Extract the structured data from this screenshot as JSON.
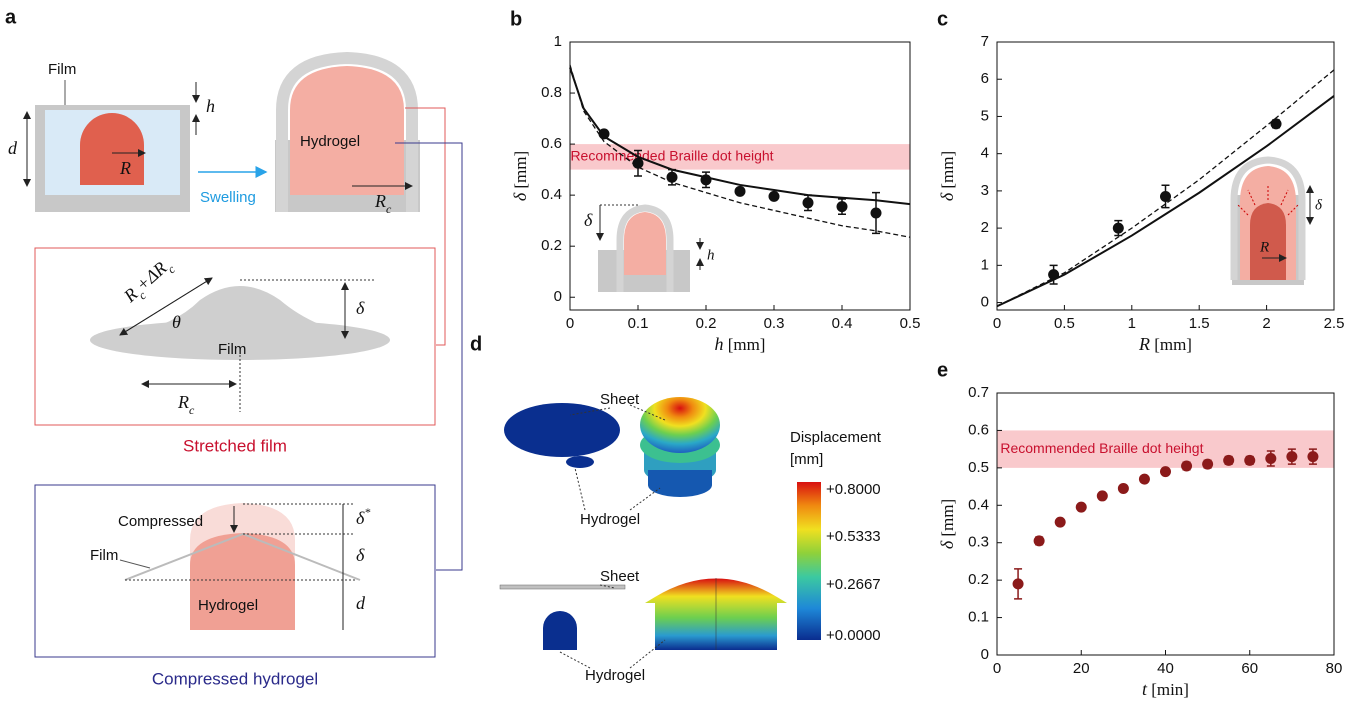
{
  "panel_a": {
    "label": "a",
    "film": "Film",
    "h": "h",
    "d": "d",
    "R": "R",
    "swelling": "Swelling",
    "hydrogel": "Hydrogel",
    "Rc": [
      "R",
      "c"
    ],
    "stretched": {
      "arc": [
        "R",
        "c",
        "+ΔR",
        "c"
      ],
      "theta": "θ",
      "delta": "δ",
      "film": "Film",
      "Rc": [
        "R",
        "c"
      ],
      "caption": "Stretched film"
    },
    "compressed": {
      "compressed": "Compressed",
      "delta_star": [
        "δ",
        "*"
      ],
      "delta": "δ",
      "film": "Film",
      "hydrogel": "Hydrogel",
      "d": "d",
      "caption": "Compressed hydrogel"
    }
  },
  "panel_d": {
    "label": "d",
    "sheet_top": "Sheet",
    "hydrogel_top": "Hydrogel",
    "colorbar_title": [
      "Displacement",
      "[mm]"
    ],
    "colorbar_ticks": [
      "+0.8000",
      "+0.5333",
      "+0.2667",
      "+0.0000"
    ],
    "sheet_bottom": "Sheet",
    "hydrogel_bottom": "Hydrogel"
  },
  "chart_data": [
    {
      "type": "scatter",
      "panel": "b",
      "xlabel": {
        "symbol": "h",
        "unit": "[mm]"
      },
      "ylabel": {
        "symbol": "δ",
        "unit": "[mm]"
      },
      "xlim": [
        0,
        0.5
      ],
      "ylim": [
        -0.05,
        1
      ],
      "xticks": [
        0,
        0.1,
        0.2,
        0.3,
        0.4,
        0.5
      ],
      "yticks": [
        0,
        0.2,
        0.4,
        0.6,
        0.8,
        1
      ],
      "band": {
        "range": [
          0.5,
          0.6
        ],
        "color": "#f9c9cc",
        "label": "Recommended Braille dot height",
        "label_color": "#c8102e"
      },
      "inset_labels": [
        "δ",
        "h"
      ],
      "series": [
        {
          "style": "points",
          "color": "#111111",
          "x": [
            0.05,
            0.1,
            0.15,
            0.2,
            0.25,
            0.3,
            0.35,
            0.4,
            0.45
          ],
          "values": [
            0.64,
            0.525,
            0.47,
            0.46,
            0.415,
            0.395,
            0.37,
            0.355,
            0.33
          ],
          "errors": [
            0.01,
            0.05,
            0.03,
            0.03,
            0.01,
            0.01,
            0.03,
            0.03,
            0.08
          ]
        },
        {
          "style": "solid",
          "color": "#111111",
          "x": [
            0,
            0.02,
            0.05,
            0.1,
            0.15,
            0.2,
            0.25,
            0.3,
            0.35,
            0.4,
            0.45,
            0.5
          ],
          "values": [
            0.9,
            0.74,
            0.63,
            0.55,
            0.5,
            0.47,
            0.44,
            0.42,
            0.4,
            0.39,
            0.38,
            0.365
          ]
        },
        {
          "style": "dashed",
          "color": "#111111",
          "x": [
            0,
            0.02,
            0.05,
            0.1,
            0.15,
            0.2,
            0.25,
            0.3,
            0.35,
            0.4,
            0.45,
            0.5
          ],
          "values": [
            0.91,
            0.73,
            0.61,
            0.51,
            0.45,
            0.41,
            0.37,
            0.34,
            0.31,
            0.28,
            0.26,
            0.235
          ]
        }
      ]
    },
    {
      "type": "scatter",
      "panel": "c",
      "xlabel": {
        "symbol": "R",
        "unit": "[mm]"
      },
      "ylabel": {
        "symbol": "δ",
        "unit": "[mm]"
      },
      "xlim": [
        0,
        2.5
      ],
      "ylim": [
        -0.2,
        7
      ],
      "xticks": [
        0,
        0.5,
        1,
        1.5,
        2,
        2.5
      ],
      "yticks": [
        0,
        1,
        2,
        3,
        4,
        5,
        6,
        7
      ],
      "inset_labels": [
        "δ",
        "R"
      ],
      "series": [
        {
          "style": "points",
          "color": "#111111",
          "x": [
            0.42,
            0.9,
            1.25,
            2.07
          ],
          "values": [
            0.75,
            2.0,
            2.85,
            4.8
          ],
          "errors": [
            0.25,
            0.2,
            0.3,
            0.1
          ]
        },
        {
          "style": "solid",
          "color": "#111111",
          "x": [
            0,
            0.5,
            1,
            1.5,
            2,
            2.5
          ],
          "values": [
            -0.1,
            0.75,
            1.8,
            2.95,
            4.2,
            5.55
          ]
        },
        {
          "style": "dashed",
          "color": "#111111",
          "x": [
            0,
            0.5,
            1,
            1.5,
            2,
            2.5
          ],
          "values": [
            -0.1,
            0.8,
            2.0,
            3.3,
            4.75,
            6.25
          ]
        }
      ]
    },
    {
      "type": "scatter",
      "panel": "e",
      "xlabel": {
        "symbol": "t",
        "unit": "[min]"
      },
      "ylabel": {
        "symbol": "δ",
        "unit": "[mm]"
      },
      "xlim": [
        0,
        80
      ],
      "ylim": [
        0,
        0.7
      ],
      "xticks": [
        0,
        20,
        40,
        60,
        80
      ],
      "yticks": [
        0,
        0.1,
        0.2,
        0.3,
        0.4,
        0.5,
        0.6,
        0.7
      ],
      "band": {
        "range": [
          0.5,
          0.6
        ],
        "color": "#f9c9cc",
        "label": "Recommended Braille dot heihgt",
        "label_color": "#c8102e"
      },
      "series": [
        {
          "style": "points",
          "color": "#8b1a1a",
          "x": [
            5,
            10,
            15,
            20,
            25,
            30,
            35,
            40,
            45,
            50,
            55,
            60,
            65,
            70,
            75
          ],
          "values": [
            0.19,
            0.305,
            0.355,
            0.395,
            0.425,
            0.445,
            0.47,
            0.49,
            0.505,
            0.51,
            0.52,
            0.52,
            0.525,
            0.53,
            0.53
          ],
          "errors": [
            0.04,
            0.01,
            0.005,
            0.005,
            0.005,
            0.005,
            0.005,
            0.005,
            0.01,
            0.01,
            0.01,
            0.01,
            0.02,
            0.02,
            0.02
          ]
        }
      ]
    }
  ]
}
